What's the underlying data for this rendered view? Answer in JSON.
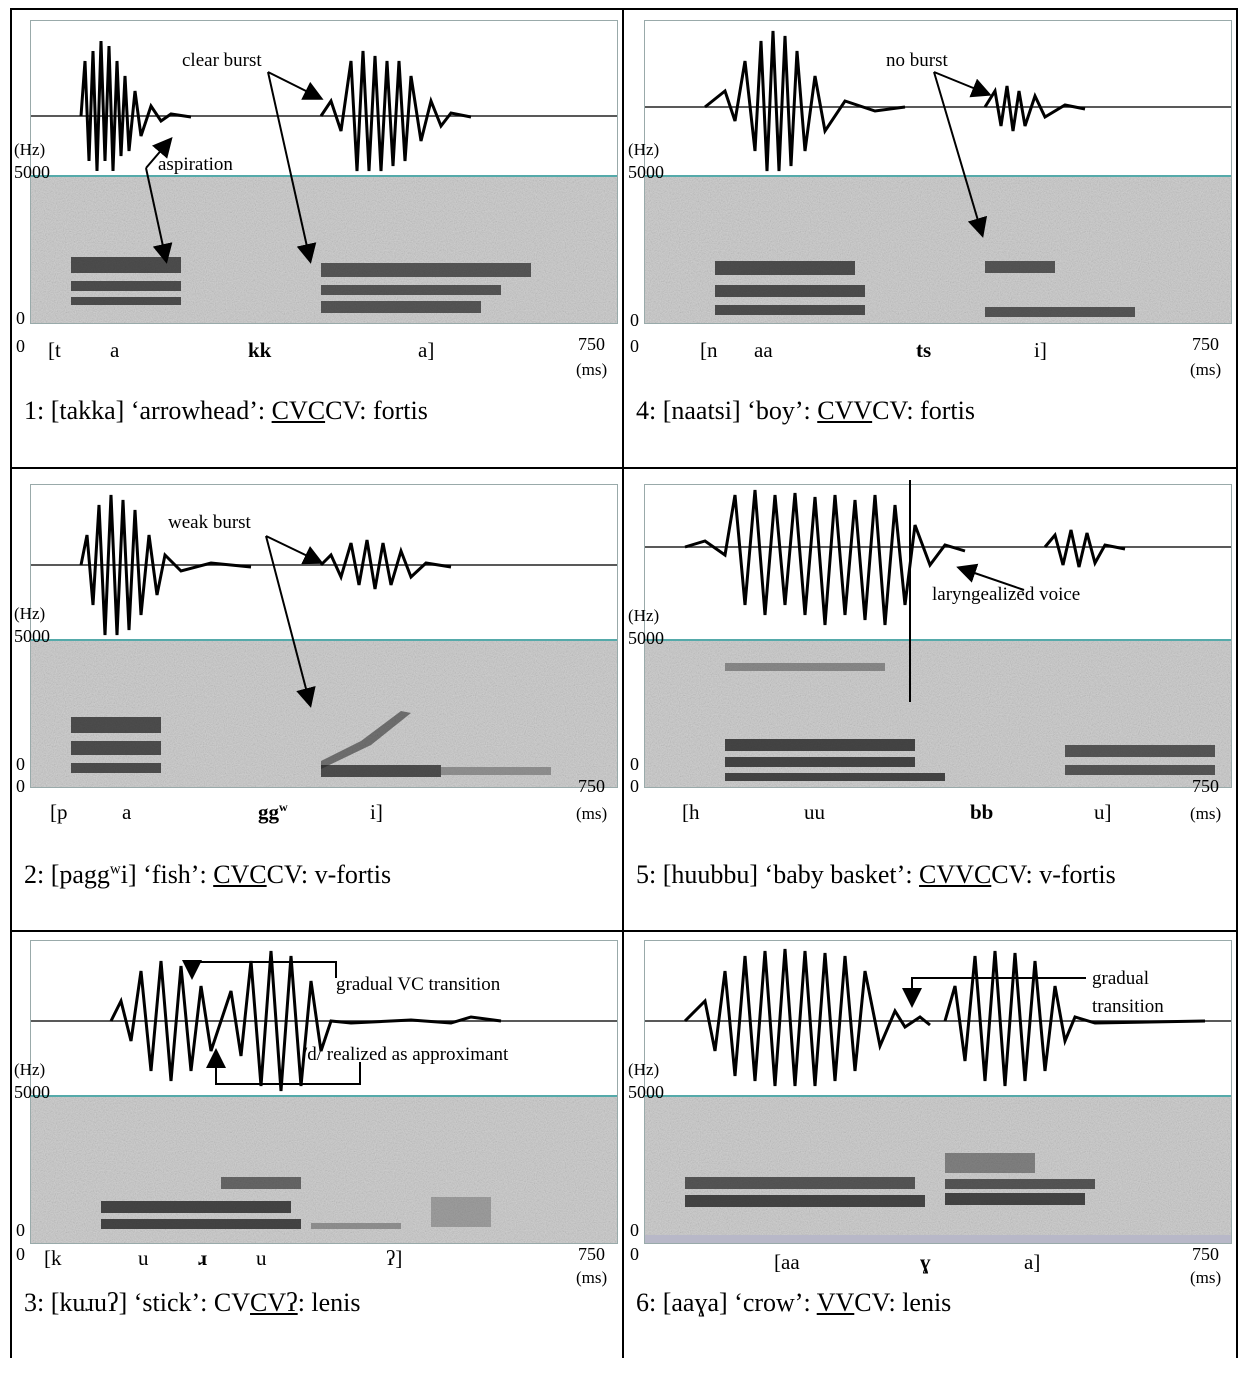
{
  "axes": {
    "hz": "(Hz)",
    "top": "5000",
    "zero": "0",
    "start": "0",
    "end": "750",
    "ms": "(ms)"
  },
  "panels": [
    {
      "number": "1",
      "segments": [
        "[t",
        "a",
        "kk",
        "a]"
      ],
      "caption": {
        "prefix": "1: [takka] ‘arrowhead’: ",
        "underlined": "CVC",
        "suffix": "CV: fortis"
      },
      "annotations": [
        "clear burst",
        "aspiration"
      ]
    },
    {
      "number": "4",
      "segments": [
        "[n",
        "aa",
        "ts",
        "i]"
      ],
      "caption": {
        "prefix": "4: [naatsi] ‘boy’: ",
        "underlined": "CVV",
        "suffix": "CV: fortis"
      },
      "annotations": [
        "no burst"
      ]
    },
    {
      "number": "2",
      "segments": [
        "[p",
        "a",
        "gg",
        "w",
        "i]"
      ],
      "caption": {
        "prefix": "2: [pagg",
        "sup": "w",
        "mid": "i] ‘fish’: ",
        "underlined": "CVC",
        "suffix": "CV: v-fortis"
      },
      "annotations": [
        "weak burst"
      ]
    },
    {
      "number": "5",
      "segments": [
        "[h",
        "uu",
        "bb",
        "u]"
      ],
      "caption": {
        "prefix": "5: [huubbu] ‘baby basket’: ",
        "underlined": "CVVC",
        "suffix": "CV: v-fortis"
      },
      "annotations": [
        "laryngealized voice"
      ]
    },
    {
      "number": "3",
      "segments": [
        "[k",
        "u",
        "ɹ",
        "u",
        "ʔ]"
      ],
      "caption": {
        "prefix": "3: [kuɹuʔ] ‘stick’: CV",
        "underlined": "CVʔ",
        "suffix": ": lenis"
      },
      "annotations": [
        "gradual VC transition",
        "/d/ realized as approximant"
      ]
    },
    {
      "number": "6",
      "segments": [
        "[aa",
        "ɣ",
        "a]"
      ],
      "caption": {
        "prefix": "6: [aaɣa] ‘crow’: ",
        "underlined": "VV",
        "suffix": "CV: lenis"
      },
      "annotations": [
        "gradual",
        "transition"
      ]
    }
  ]
}
